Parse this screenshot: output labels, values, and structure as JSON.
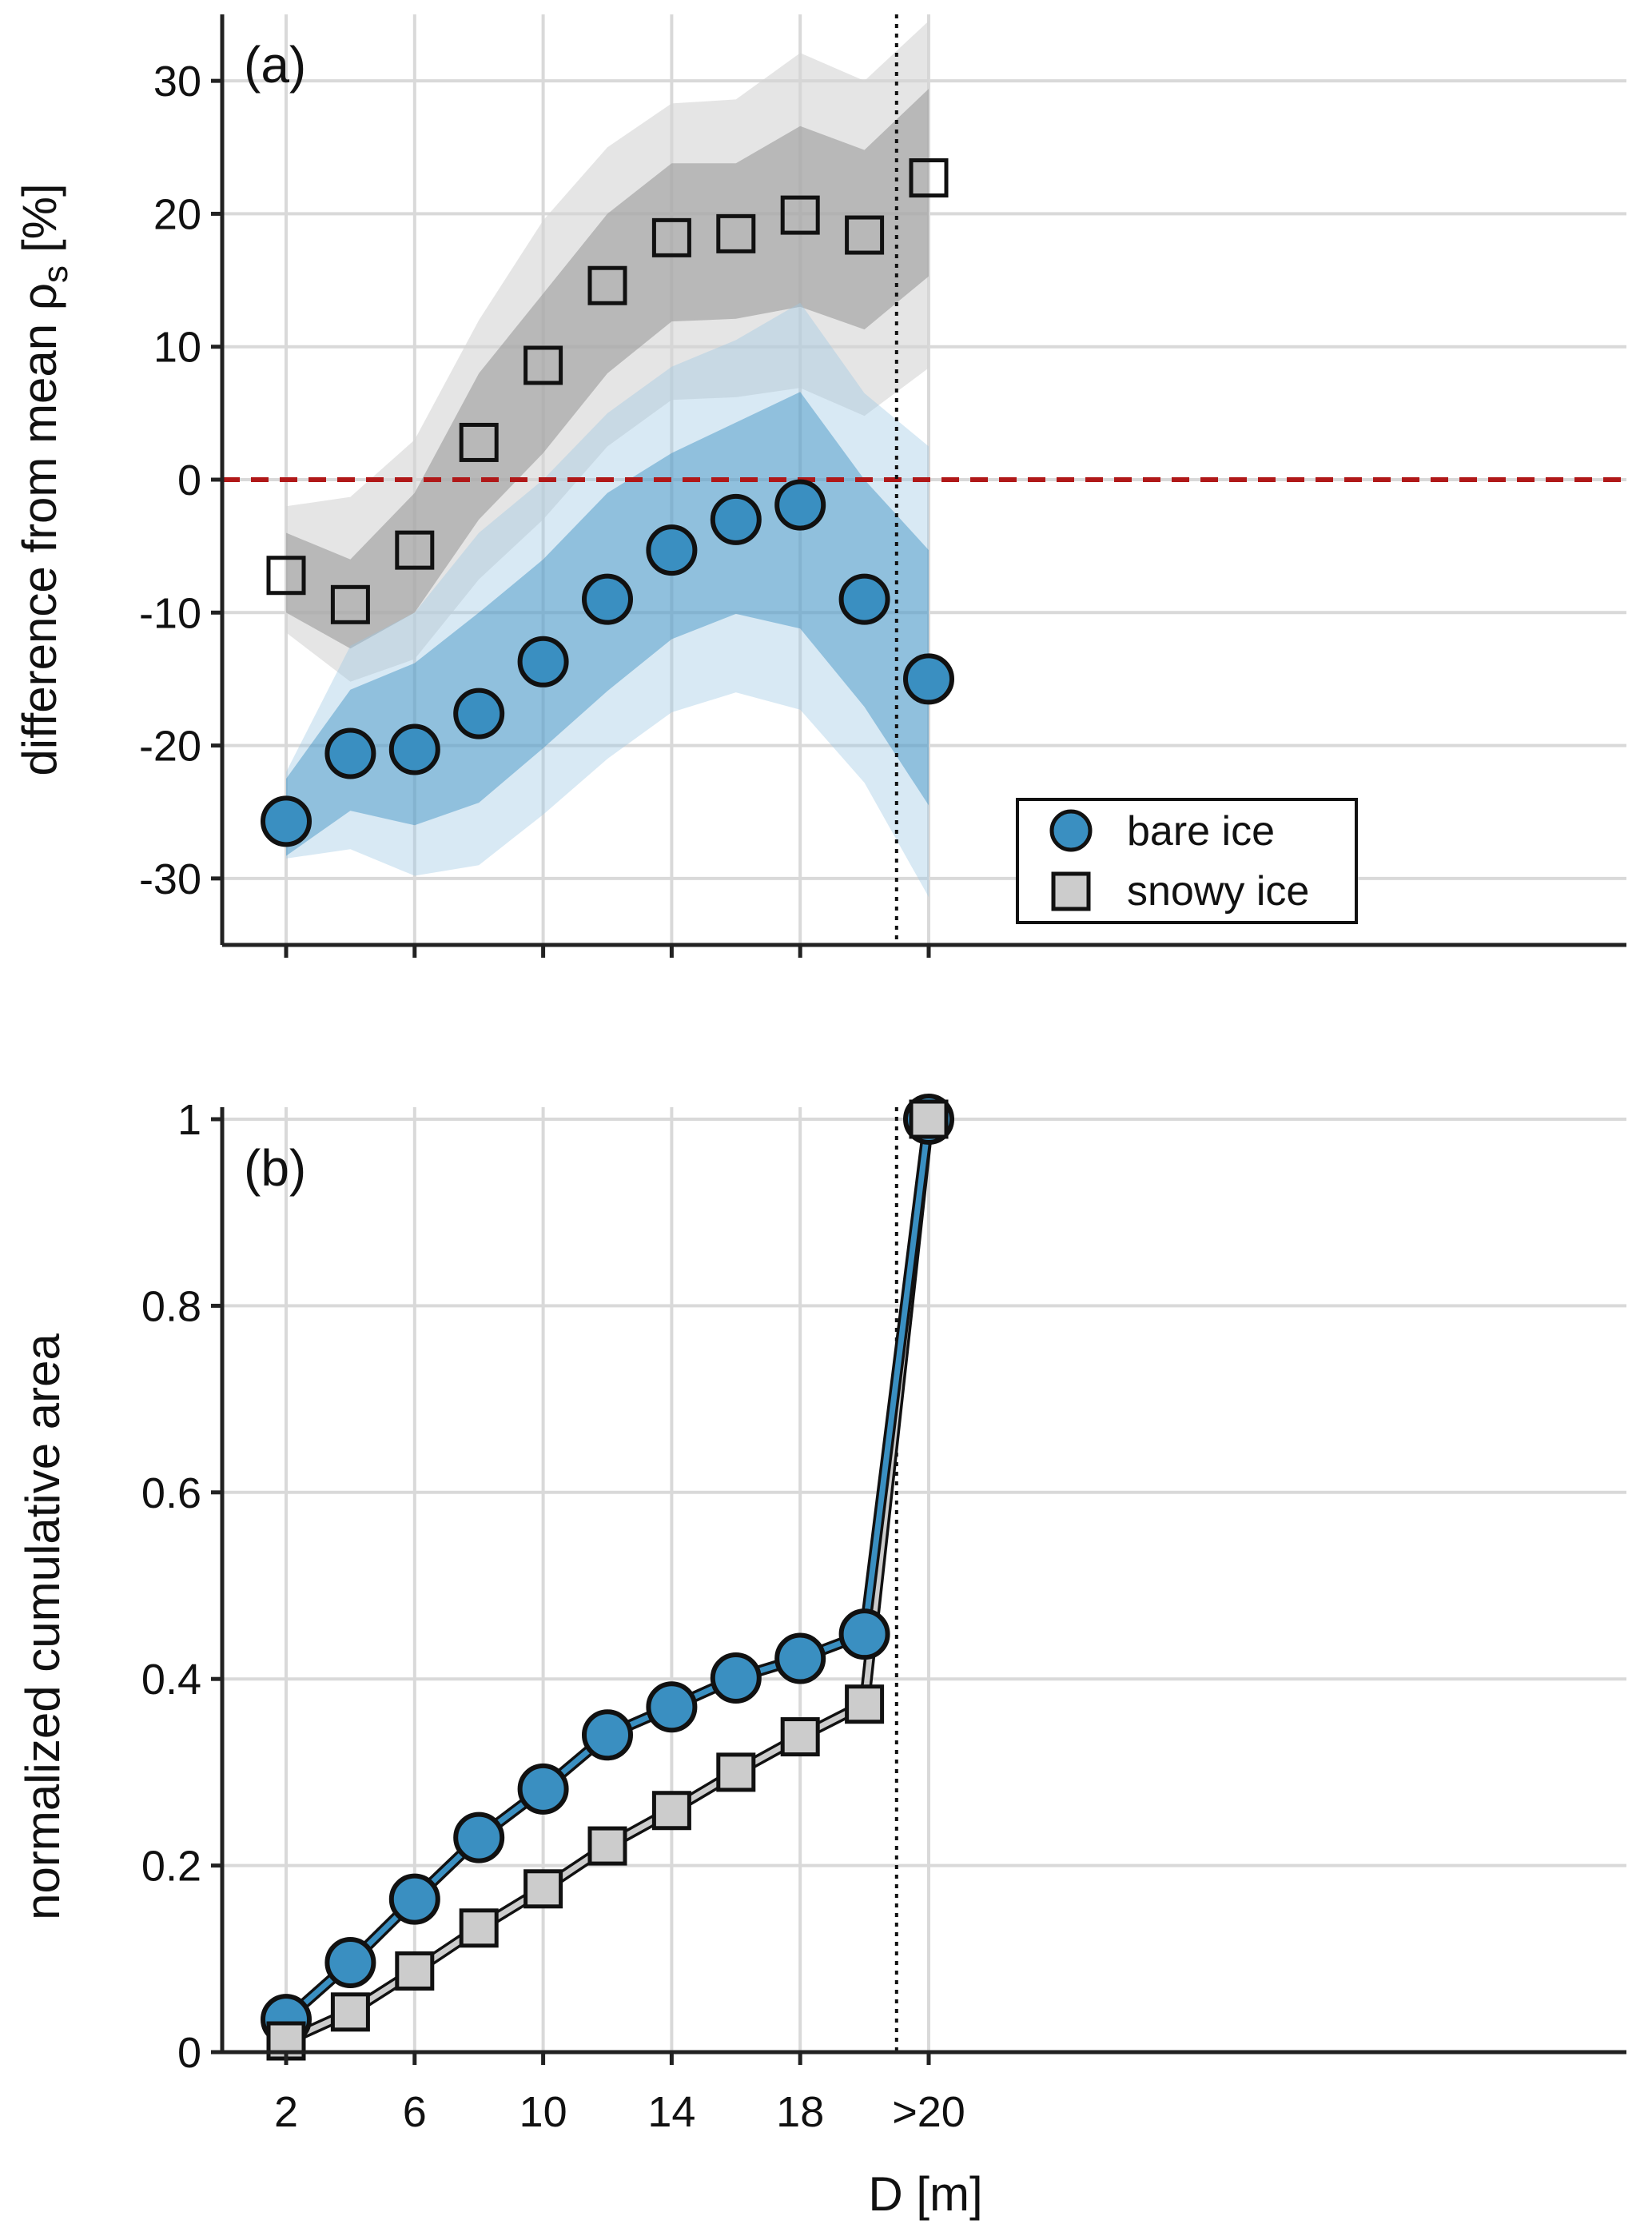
{
  "colors": {
    "bare_ice": "#3a8fc1",
    "bare_ice_band_inner": "#3a8fc1",
    "bare_ice_band_outer": "#9ec9e3",
    "snowy_ice": "#cccccc",
    "snowy_ice_band_inner": "#9a9a9a",
    "snowy_ice_band_outer": "#d4d4d4",
    "zero_line": "#b01818",
    "grid": "#d9d9d9",
    "axis": "#222222"
  },
  "chart_data": [
    {
      "type": "scatter",
      "panel_label": "(a)",
      "ylabel": "difference from mean ρ",
      "ylabel_subscript": "s",
      "ylabel_unit": "[%]",
      "xlabel": "",
      "categories": [
        "2",
        "4",
        "6",
        "8",
        "10",
        "12",
        "14",
        "16",
        "18",
        "20",
        ">20"
      ],
      "x_tick_labels": [
        "2",
        "6",
        "10",
        "14",
        "18",
        ">20"
      ],
      "x_tick_positions": [
        "2",
        "6",
        "10",
        "14",
        "18",
        ">20"
      ],
      "yticks": [
        30,
        20,
        10,
        0,
        -10,
        -20,
        -30
      ],
      "ytick_labels": [
        "30",
        "20",
        "10",
        "0",
        "-10",
        "-20",
        "-30"
      ],
      "ylim": [
        -35,
        35
      ],
      "grid": true,
      "reference_line_y": 0,
      "divider_between": [
        "20",
        ">20"
      ],
      "legend": {
        "position": "bottom-right",
        "entries": [
          "bare ice",
          "snowy ice"
        ]
      },
      "series": [
        {
          "name": "bare ice",
          "marker": "circle",
          "values": [
            -25.7,
            -20.6,
            -20.3,
            -17.6,
            -13.7,
            -9.0,
            -5.3,
            -3.0,
            -1.9,
            -9.0,
            -15.0
          ],
          "band_inner_upper": [
            -22.5,
            -15.8,
            -13.8,
            -10.0,
            -6.0,
            -1.0,
            2.0,
            4.3,
            6.6,
            0.0,
            -5.3
          ],
          "band_inner_lower": [
            -28.3,
            -24.9,
            -26.0,
            -24.3,
            -20.2,
            -15.9,
            -12.0,
            -10.1,
            -11.2,
            -17.1,
            -24.5
          ],
          "band_outer_upper": [
            -22.0,
            -12.5,
            -10.0,
            -4.0,
            0.0,
            5.0,
            8.5,
            10.5,
            13.3,
            6.5,
            2.5
          ],
          "band_outer_lower": [
            -28.5,
            -27.8,
            -29.8,
            -29.0,
            -25.2,
            -21.0,
            -17.5,
            -16.0,
            -17.3,
            -22.8,
            -31.4
          ]
        },
        {
          "name": "snowy ice",
          "marker": "square",
          "values": [
            -7.2,
            -9.4,
            -5.3,
            2.8,
            8.6,
            14.6,
            18.2,
            18.5,
            19.9,
            18.4,
            22.7
          ],
          "band_inner_upper": [
            -4.0,
            -6.0,
            -1.0,
            8.0,
            14.0,
            20.0,
            23.8,
            23.8,
            26.6,
            24.8,
            29.4
          ],
          "band_inner_lower": [
            -10.0,
            -12.7,
            -10.0,
            -3.0,
            2.0,
            8.0,
            11.9,
            12.1,
            13.0,
            11.3,
            15.3
          ],
          "band_outer_upper": [
            -2.0,
            -1.3,
            3.0,
            12.0,
            19.5,
            25.0,
            28.3,
            28.6,
            32.1,
            30.0,
            34.5
          ],
          "band_outer_lower": [
            -11.5,
            -15.2,
            -13.5,
            -7.5,
            -3.0,
            2.5,
            6.0,
            6.2,
            6.9,
            4.8,
            8.4
          ]
        }
      ]
    },
    {
      "type": "line",
      "panel_label": "(b)",
      "ylabel": "normalized cumulative area",
      "xlabel": "D [m]",
      "categories": [
        "2",
        "4",
        "6",
        "8",
        "10",
        "12",
        "14",
        "16",
        "18",
        "20",
        ">20"
      ],
      "x_tick_labels": [
        "2",
        "6",
        "10",
        "14",
        "18",
        ">20"
      ],
      "x_tick_positions": [
        "2",
        "6",
        "10",
        "14",
        "18",
        ">20"
      ],
      "yticks": [
        1,
        0.8,
        0.6,
        0.4,
        0.2,
        0
      ],
      "ytick_labels": [
        "1",
        "0.8",
        "0.6",
        "0.4",
        "0.2",
        "0"
      ],
      "ylim": [
        0,
        1
      ],
      "grid": true,
      "divider_between": [
        "20",
        ">20"
      ],
      "series": [
        {
          "name": "bare ice",
          "marker": "circle",
          "values": [
            0.035,
            0.096,
            0.164,
            0.23,
            0.282,
            0.34,
            0.37,
            0.401,
            0.422,
            0.448,
            1.0
          ]
        },
        {
          "name": "snowy ice",
          "marker": "square",
          "values": [
            0.012,
            0.043,
            0.087,
            0.133,
            0.175,
            0.221,
            0.259,
            0.3,
            0.338,
            0.373,
            1.0
          ]
        }
      ]
    }
  ]
}
